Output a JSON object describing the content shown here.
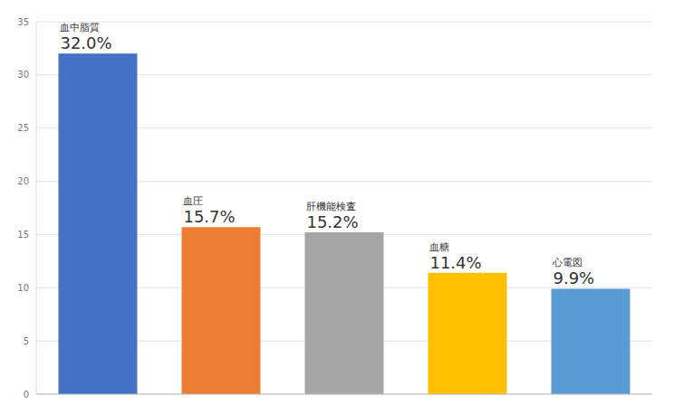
{
  "chart_data": {
    "type": "bar",
    "categories": [
      "血中脂質",
      "血圧",
      "肝機能検査",
      "血糖",
      "心電図"
    ],
    "values": [
      32.0,
      15.7,
      15.2,
      11.4,
      9.9
    ],
    "value_labels": [
      "32.0%",
      "15.7%",
      "15.2%",
      "11.4%",
      "9.9%"
    ],
    "colors": [
      "#4472c4",
      "#ed7d31",
      "#a5a5a5",
      "#ffc000",
      "#5b9bd5"
    ],
    "ylim": [
      0,
      35
    ],
    "yticks": [
      0,
      5,
      10,
      15,
      20,
      25,
      30,
      35
    ],
    "grid": true,
    "data_labels": true,
    "tick_labels": "y"
  }
}
